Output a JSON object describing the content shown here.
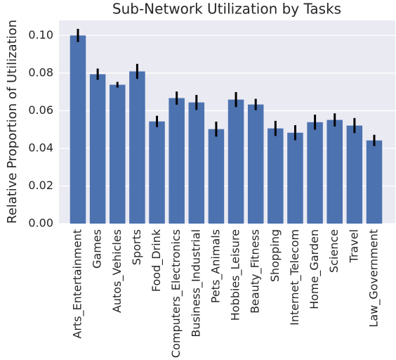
{
  "chart_data": {
    "type": "bar",
    "title": "Sub-Network Utilization by Tasks",
    "y_label": "Relative Proportion of Utilization",
    "categories": [
      "Arts_Entertainment",
      "Games",
      "Autos_Vehicles",
      "Sports",
      "Food_Drink",
      "Computers_Electronics",
      "Business_Industrial",
      "Pets_Animals",
      "Hobbies_Leisure",
      "Beauty_Fitness",
      "Shopping",
      "Internet_Telecom",
      "Home_Garden",
      "Science",
      "Travel",
      "Law_Government"
    ],
    "values": [
      0.1,
      0.0794,
      0.0738,
      0.0809,
      0.0543,
      0.0667,
      0.0644,
      0.0502,
      0.0659,
      0.0633,
      0.0506,
      0.0483,
      0.0539,
      0.0551,
      0.0521,
      0.0442
    ],
    "errors": [
      0.0035,
      0.003,
      0.0015,
      0.004,
      0.003,
      0.0035,
      0.004,
      0.004,
      0.004,
      0.003,
      0.004,
      0.004,
      0.004,
      0.0035,
      0.004,
      0.003
    ],
    "color": "#4c72b0",
    "error_color": "#000000",
    "background": "#eaeaf2",
    "ylim": [
      0,
      0.108
    ],
    "yticks": [
      {
        "value": 0,
        "label": "0.00"
      },
      {
        "value": 0.02,
        "label": "0.02"
      },
      {
        "value": 0.04,
        "label": "0.04"
      },
      {
        "value": 0.06,
        "label": "0.06"
      },
      {
        "value": 0.08,
        "label": "0.08"
      },
      {
        "value": 0.1,
        "label": "0.10"
      }
    ],
    "grid": true
  }
}
